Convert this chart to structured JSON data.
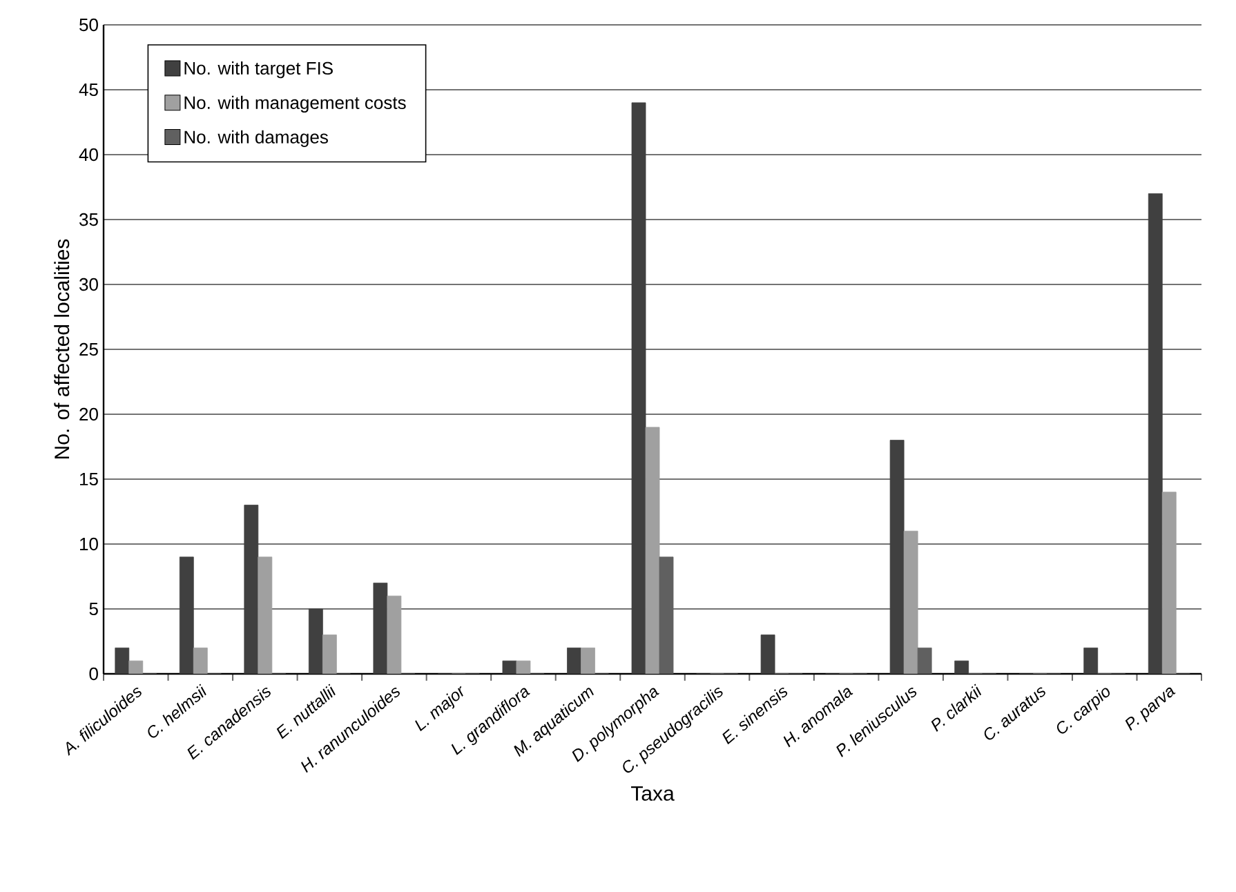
{
  "chart_data": {
    "type": "bar",
    "xlabel": "Taxa",
    "ylabel": "No. of affected localities",
    "categories": [
      "A. filiculoides",
      "C. helmsii",
      "E. canadensis",
      "E. nuttallii",
      "H. ranunculoides",
      "L. major",
      "L. grandiflora",
      "M. aquaticum",
      "D. polymorpha",
      "C. pseudogracilis",
      "E. sinensis",
      "H. anomala",
      "P. leniusculus",
      "P. clarkii",
      "C. auratus",
      "C. carpio",
      "P. parva"
    ],
    "series": [
      {
        "name": "No. with target FIS",
        "color": "#404040",
        "values": [
          2,
          9,
          13,
          5,
          7,
          0,
          1,
          2,
          44,
          0,
          3,
          0,
          18,
          1,
          0,
          2,
          37
        ]
      },
      {
        "name": "No. with management costs",
        "color": "#a0a0a0",
        "values": [
          1,
          2,
          9,
          3,
          6,
          0,
          1,
          2,
          19,
          0,
          0,
          0,
          11,
          0,
          0,
          0,
          14
        ]
      },
      {
        "name": "No. with damages",
        "color": "#606060",
        "values": [
          0,
          0,
          0,
          0,
          0,
          0,
          0,
          0,
          9,
          0,
          0,
          0,
          2,
          0,
          0,
          0,
          0
        ]
      }
    ],
    "ylim": [
      0,
      50
    ],
    "yticks": [
      0,
      5,
      10,
      15,
      20,
      25,
      30,
      35,
      40,
      45,
      50
    ],
    "grid": "y",
    "legend": "top left"
  }
}
